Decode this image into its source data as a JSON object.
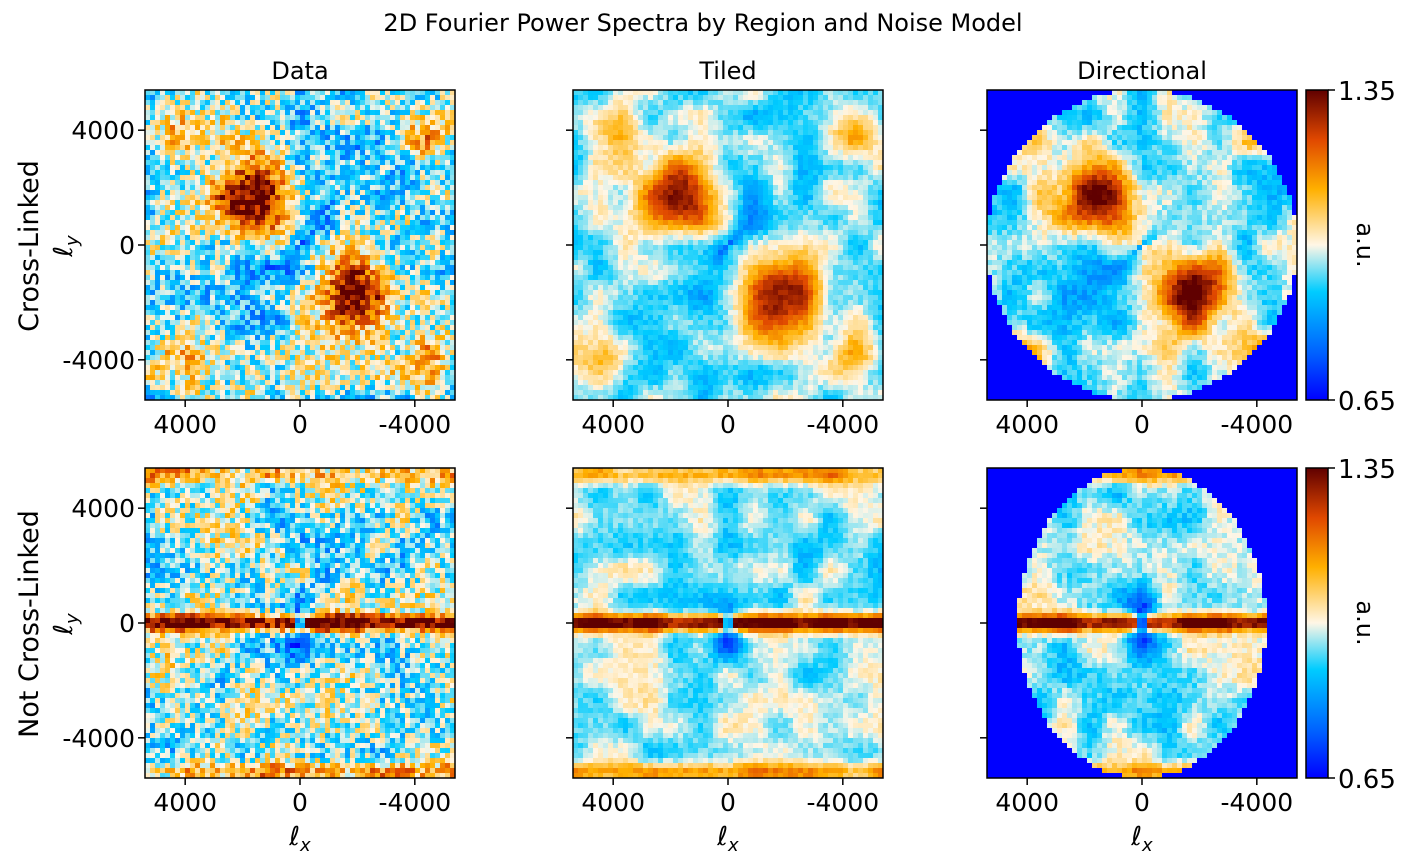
{
  "title": "2D Fourier Power Spectra by Region and Noise Model",
  "columns": [
    "Data",
    "Tiled",
    "Directional"
  ],
  "rows": [
    {
      "label": "Cross-Linked",
      "ylabel": "ℓ",
      "ylabel_sub": "y"
    },
    {
      "label": "Not Cross-Linked",
      "ylabel": "ℓ",
      "ylabel_sub": "y"
    }
  ],
  "xlabel": "ℓ",
  "xlabel_sub": "x",
  "colorbar": {
    "label": "a.u.",
    "min": "0.65",
    "max": "1.35"
  },
  "colors": {
    "background_mask": "#0000ff",
    "low": "#0020ff",
    "mid_low": "#00c8ff",
    "mid": "#fff6e6",
    "mid_high": "#ffa000",
    "high": "#6b0000"
  },
  "chart_data": {
    "type": "heatmap",
    "title": "2D Fourier Power Spectra by Region and Noise Model",
    "panels": [
      {
        "row": "Cross-Linked",
        "column": "Data",
        "pattern": "diagonal-X, noisy"
      },
      {
        "row": "Cross-Linked",
        "column": "Tiled",
        "pattern": "diagonal-X, smooth"
      },
      {
        "row": "Cross-Linked",
        "column": "Directional",
        "pattern": "diagonal-X, circular mask"
      },
      {
        "row": "Not Cross-Linked",
        "column": "Data",
        "pattern": "horizontal stripe, noisy"
      },
      {
        "row": "Not Cross-Linked",
        "column": "Tiled",
        "pattern": "horizontal stripe, smooth"
      },
      {
        "row": "Not Cross-Linked",
        "column": "Directional",
        "pattern": "horizontal stripe, elliptical mask"
      }
    ],
    "xlabel": "ℓx",
    "ylabel": "ℓy",
    "xlim": [
      5400,
      -5400
    ],
    "ylim": [
      -5400,
      5400
    ],
    "xticks": [
      "4000",
      "0",
      "-4000"
    ],
    "yticks": [
      "4000",
      "0",
      "-4000"
    ],
    "color_range": [
      0.65,
      1.35
    ],
    "colorbar_label": "a.u."
  }
}
